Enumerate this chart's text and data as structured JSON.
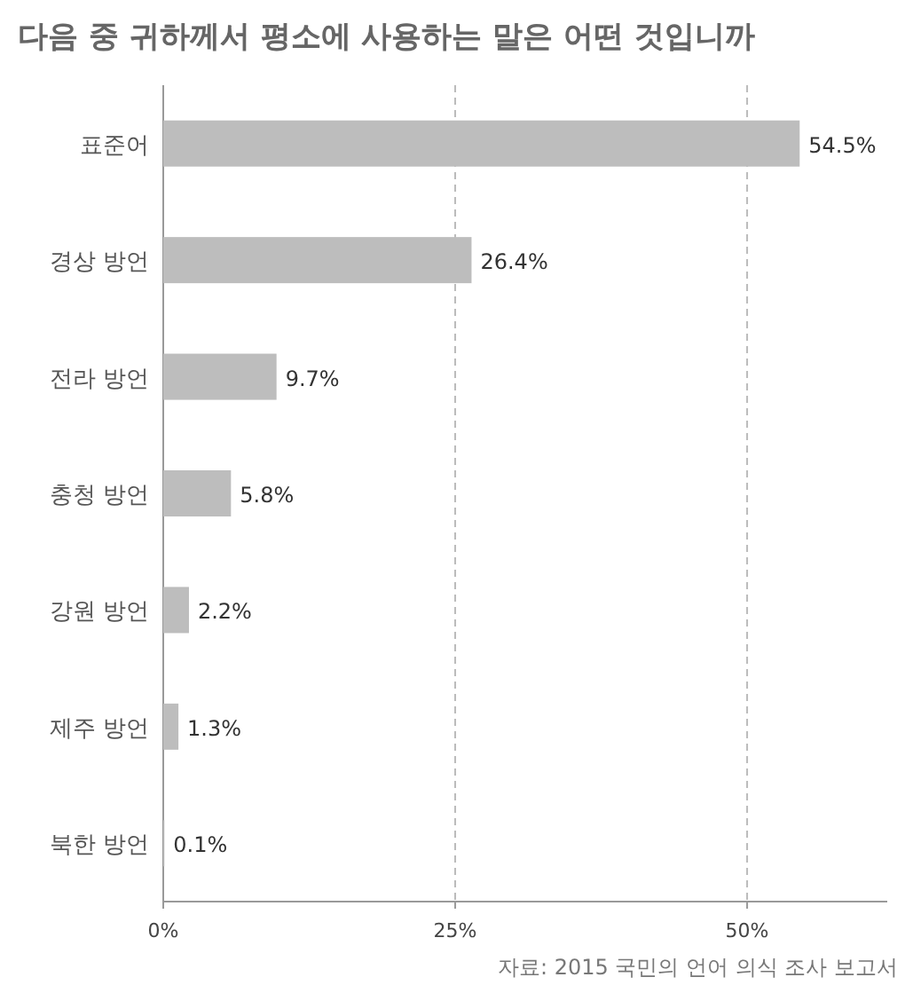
{
  "chart_data": {
    "type": "bar",
    "orientation": "horizontal",
    "title": "다음 중 귀하께서 평소에 사용하는 말은 어떤 것입니까",
    "categories": [
      "표준어",
      "경상 방언",
      "전라 방언",
      "충청 방언",
      "강원 방언",
      "제주 방언",
      "북한 방언"
    ],
    "values": [
      54.5,
      26.4,
      9.7,
      5.8,
      2.2,
      1.3,
      0.1
    ],
    "value_labels": [
      "54.5%",
      "26.4%",
      "9.7%",
      "5.8%",
      "2.2%",
      "1.3%",
      "0.1%"
    ],
    "color": "#bdbdbd",
    "xlim": [
      0,
      62
    ],
    "xticks": [
      {
        "value": 0,
        "label": "0%"
      },
      {
        "value": 25,
        "label": "25%"
      },
      {
        "value": 50,
        "label": "50%"
      }
    ],
    "grid": "x",
    "annotations": [
      "자료: 2015 국민의 언어 의식 조사 보고서"
    ]
  }
}
